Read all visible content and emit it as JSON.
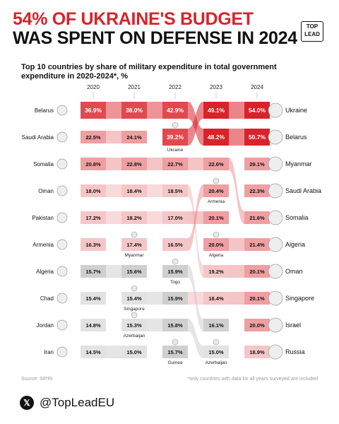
{
  "header": {
    "title_line1": "54% OF UKRAINE'S BUDGET",
    "title_line2": "WAS SPENT ON DEFENSE IN 2024",
    "logo_line1": "TOP",
    "logo_line2": "LEAD",
    "subtitle": "Top 10 countries by share of military expenditure in total government expenditure in 2020-2024*, %"
  },
  "footer": {
    "source": "Source: SIPRI",
    "footnote": "*only countries with data for all years surveyed are included",
    "handle": "@TopLeadEU",
    "x_glyph": "𝕏"
  },
  "colors": {
    "accent": "#d8232a",
    "grey": "#bfbfbf",
    "dark_grey": "#8c8c8c"
  },
  "chart_data": {
    "type": "table",
    "unit": "%",
    "years": [
      "2020",
      "2021",
      "2022",
      "2023",
      "2024"
    ],
    "left_labels": [
      "Belarus",
      "Saudi Arabia",
      "Somalia",
      "Oman",
      "Pakistan",
      "Armenia",
      "Algeria",
      "Chad",
      "Jordan",
      "Iran"
    ],
    "right_labels": [
      "Ukraine",
      "Belarus",
      "Myanmar",
      "Saudi Arabia",
      "Somalia",
      "Algeria",
      "Oman",
      "Singapore",
      "Israel",
      "Russia"
    ],
    "columns": [
      {
        "year": "2020",
        "cells": [
          {
            "country": "Belarus",
            "value": 36.9
          },
          {
            "country": "Saudi Arabia",
            "value": 22.5
          },
          {
            "country": "Somalia",
            "value": 20.8
          },
          {
            "country": "Oman",
            "value": 18.0
          },
          {
            "country": "Pakistan",
            "value": 17.2
          },
          {
            "country": "Armenia",
            "value": 16.3
          },
          {
            "country": "Algeria",
            "value": 15.7
          },
          {
            "country": "Chad",
            "value": 15.4
          },
          {
            "country": "Jordan",
            "value": 14.8
          },
          {
            "country": "Iran",
            "value": 14.5
          }
        ]
      },
      {
        "year": "2021",
        "cells": [
          {
            "country": "Belarus",
            "value": 38.0
          },
          {
            "country": "Saudi Arabia",
            "value": 24.1
          },
          {
            "country": "Somalia",
            "value": 22.8
          },
          {
            "country": "Oman",
            "value": 18.4
          },
          {
            "country": "Pakistan",
            "value": 18.2
          },
          {
            "country": "Myanmar",
            "value": 17.4,
            "label": "Myanmar"
          },
          {
            "country": "Algeria",
            "value": 15.6
          },
          {
            "country": "Singapore",
            "value": 15.4,
            "label": "Singapore"
          },
          {
            "country": "Azerbaijan",
            "value": 15.3,
            "label": "Azerbaijan"
          },
          {
            "country": "Iran",
            "value": 15.0
          }
        ]
      },
      {
        "year": "2022",
        "cells": [
          {
            "country": "Belarus",
            "value": 42.9
          },
          {
            "country": "Ukraine",
            "value": 39.2,
            "label": "Ukraine"
          },
          {
            "country": "Somalia",
            "value": 22.7
          },
          {
            "country": "Oman",
            "value": 18.5
          },
          {
            "country": "Pakistan",
            "value": 17.0
          },
          {
            "country": "Armenia",
            "value": 16.5
          },
          {
            "country": "Togo",
            "value": 15.9,
            "label": "Togo"
          },
          {
            "country": "Singapore",
            "value": 15.9
          },
          {
            "country": "Azerbaijan",
            "value": 15.8
          },
          {
            "country": "Guinea",
            "value": 15.7,
            "label": "Guinea"
          }
        ]
      },
      {
        "year": "2023",
        "cells": [
          {
            "country": "Ukraine",
            "value": 49.1
          },
          {
            "country": "Belarus",
            "value": 48.2
          },
          {
            "country": "Somalia",
            "value": 22.6
          },
          {
            "country": "Armenia",
            "value": 20.4,
            "label": "Armenia"
          },
          {
            "country": "Pakistan",
            "value": 20.1
          },
          {
            "country": "Algeria",
            "value": 20.0,
            "label": "Algeria"
          },
          {
            "country": "Oman",
            "value": 19.2
          },
          {
            "country": "Singapore",
            "value": 18.4
          },
          {
            "country": "Togo",
            "value": 16.1
          },
          {
            "country": "Azerbaijan",
            "value": 15.0,
            "label": "Azerbaijan"
          }
        ]
      },
      {
        "year": "2024",
        "cells": [
          {
            "country": "Ukraine",
            "value": 54.0
          },
          {
            "country": "Belarus",
            "value": 50.7
          },
          {
            "country": "Myanmar",
            "value": 29.1
          },
          {
            "country": "Saudi Arabia",
            "value": 22.3
          },
          {
            "country": "Somalia",
            "value": 21.6
          },
          {
            "country": "Algeria",
            "value": 21.4
          },
          {
            "country": "Oman",
            "value": 20.1
          },
          {
            "country": "Singapore",
            "value": 20.1
          },
          {
            "country": "Israel",
            "value": 20.0
          },
          {
            "country": "Russia",
            "value": 18.9
          }
        ]
      }
    ]
  }
}
